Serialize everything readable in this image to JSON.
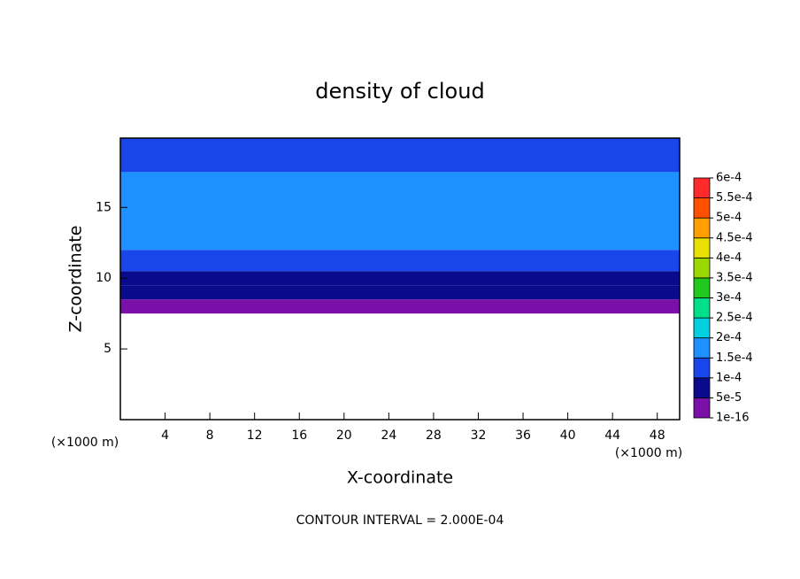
{
  "chart_data": {
    "type": "contour",
    "title": "density of cloud",
    "x_label": "X-coordinate",
    "y_label": "Z-coordinate",
    "x_units": [
      "(×1000 m)",
      "(×1000 m)"
    ],
    "footnote": "CONTOUR INTERVAL = 2.000E-04",
    "xlim": [
      0,
      50
    ],
    "xticks": [
      4,
      8,
      12,
      16,
      20,
      24,
      28,
      32,
      36,
      40,
      44,
      48
    ],
    "ylim": [
      0,
      19.9
    ],
    "yticks": [
      5,
      10,
      15
    ],
    "y": [
      7.5,
      8.5,
      9.5,
      10.5,
      12,
      17.5,
      19.9
    ],
    "values": [
      3e-05,
      6e-05,
      9e-05,
      0.00012,
      0.00017,
      0.00013
    ],
    "colorbar": {
      "ticks": [
        {
          "value": 1e-16,
          "label": "1e-16"
        },
        {
          "value": 5e-05,
          "label": "5e-5"
        },
        {
          "value": 0.0001,
          "label": "1e-4"
        },
        {
          "value": 0.00015,
          "label": "1.5e-4"
        },
        {
          "value": 0.0002,
          "label": "2e-4"
        },
        {
          "value": 0.00025,
          "label": "2.5e-4"
        },
        {
          "value": 0.0003,
          "label": "3e-4"
        },
        {
          "value": 0.00035,
          "label": "3.5e-4"
        },
        {
          "value": 0.0004,
          "label": "4e-4"
        },
        {
          "value": 0.00045,
          "label": "4.5e-4"
        },
        {
          "value": 0.0005,
          "label": "5e-4"
        },
        {
          "value": 0.00055,
          "label": "5.5e-4"
        },
        {
          "value": 0.0006,
          "label": "6e-4"
        }
      ],
      "colors": [
        "#7a10a8",
        "#0a0a8c",
        "#1846ea",
        "#1e90ff",
        "#00d0e0",
        "#00e08a",
        "#20c820",
        "#9ad800",
        "#e8e000",
        "#ffa000",
        "#ff5000",
        "#ff2a2a"
      ]
    }
  }
}
